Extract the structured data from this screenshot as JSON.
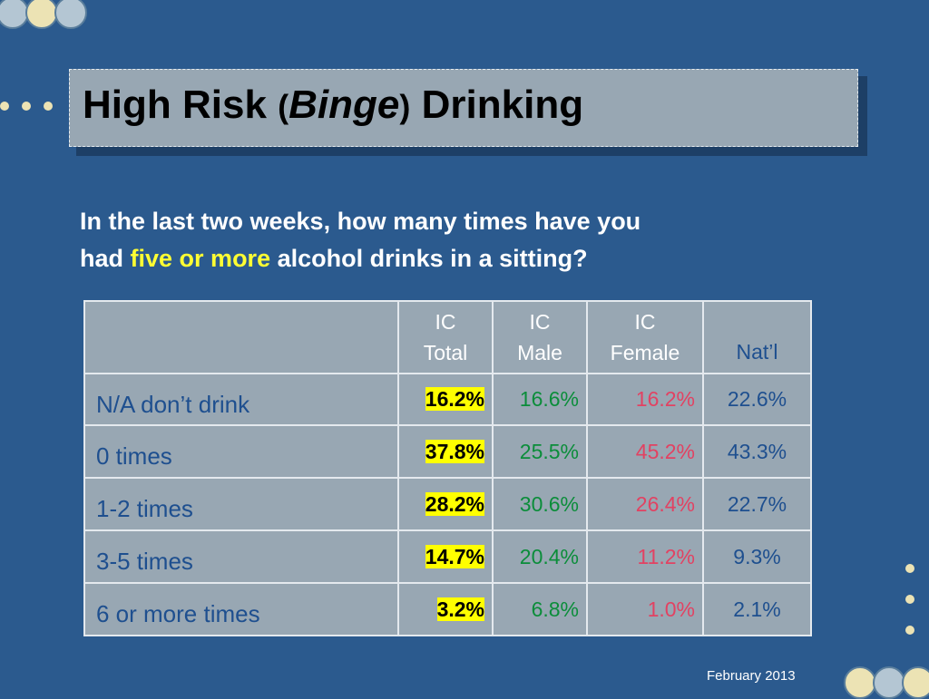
{
  "slide": {
    "title_part1": "High Risk",
    "title_paren_open": "(",
    "title_italic": "Binge",
    "title_paren_close": ")",
    "title_part2": "Drinking",
    "question_line1": "In the last two weeks, how many times have you",
    "question_had": "had",
    "question_highlight": "five or more",
    "question_rest": "alcohol drinks in a sitting?",
    "footer": "February 2013"
  },
  "table": {
    "headers": [
      {
        "line1": "IC",
        "line2": "Total"
      },
      {
        "line1": "IC",
        "line2": "Male"
      },
      {
        "line1": "IC",
        "line2": "Female"
      },
      {
        "line1": "",
        "line2": "Nat’l"
      }
    ],
    "rows": [
      {
        "label": "N/A don’t drink",
        "total": "16.2%",
        "male": "16.6%",
        "female": "16.2%",
        "natl": "22.6%"
      },
      {
        "label": "0 times",
        "total": "37.8%",
        "male": "25.5%",
        "female": "45.2%",
        "natl": "43.3%"
      },
      {
        "label": "1-2 times",
        "total": "28.2%",
        "male": "30.6%",
        "female": "26.4%",
        "natl": "22.7%"
      },
      {
        "label": "3-5 times",
        "total": "14.7%",
        "male": "20.4%",
        "female": "11.2%",
        "natl": "9.3%"
      },
      {
        "label": "6 or more times",
        "total": "3.2%",
        "male": "6.8%",
        "female": "1.0%",
        "natl": "2.1%"
      }
    ]
  },
  "colors": {
    "background": "#2b5a8e",
    "title_box": "#98a7b3",
    "highlight_text": "#ffff33",
    "total_highlight": "#ffff00",
    "male": "#0b8d3a",
    "female": "#e24262",
    "national": "#1e4f8f"
  }
}
